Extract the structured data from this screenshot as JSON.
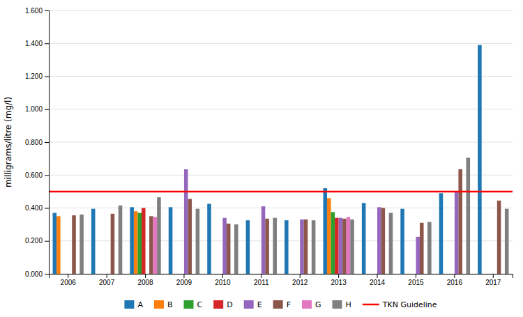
{
  "chart_data": {
    "type": "bar",
    "categories": [
      "2006",
      "2007",
      "2008",
      "2009",
      "2010",
      "2011",
      "2012",
      "2013",
      "2014",
      "2015",
      "2016",
      "2017"
    ],
    "series": [
      {
        "name": "A",
        "values": [
          0.37,
          0.395,
          0.405,
          0.405,
          0.425,
          0.325,
          0.325,
          0.52,
          0.43,
          0.395,
          0.49,
          1.39
        ]
      },
      {
        "name": "B",
        "values": [
          0.35,
          0.0,
          0.38,
          0.0,
          0.0,
          0.0,
          0.0,
          0.46,
          0.0,
          0.0,
          0.0,
          0.0
        ]
      },
      {
        "name": "C",
        "values": [
          0.0,
          0.0,
          0.37,
          0.0,
          0.0,
          0.0,
          0.0,
          0.375,
          0.0,
          0.0,
          0.0,
          0.0
        ]
      },
      {
        "name": "D",
        "values": [
          0.0,
          0.0,
          0.4,
          0.0,
          0.0,
          0.0,
          0.0,
          0.34,
          0.0,
          0.0,
          0.0,
          0.0
        ]
      },
      {
        "name": "E",
        "values": [
          0.0,
          0.0,
          0.0,
          0.635,
          0.34,
          0.41,
          0.33,
          0.34,
          0.405,
          0.225,
          0.495,
          0.0
        ]
      },
      {
        "name": "F",
        "values": [
          0.355,
          0.365,
          0.35,
          0.455,
          0.305,
          0.335,
          0.33,
          0.335,
          0.4,
          0.31,
          0.635,
          0.445
        ]
      },
      {
        "name": "G",
        "values": [
          0.0,
          0.0,
          0.345,
          0.0,
          0.0,
          0.0,
          0.0,
          0.345,
          0.0,
          0.0,
          0.0,
          0.0
        ]
      },
      {
        "name": "H",
        "values": [
          0.36,
          0.415,
          0.465,
          0.395,
          0.3,
          0.34,
          0.325,
          0.33,
          0.37,
          0.315,
          0.705,
          0.395
        ]
      }
    ],
    "guideline": {
      "name": "TKN Guideline",
      "value": 0.5,
      "color": "red"
    },
    "ylabel": "milligrams/litre (mg/l)",
    "ylim": [
      0.0,
      1.6
    ],
    "yticks": [
      {
        "value": 0.0,
        "label": "0.000"
      },
      {
        "value": 0.2,
        "label": "0.200"
      },
      {
        "value": 0.4,
        "label": "0.400"
      },
      {
        "value": 0.6,
        "label": "0.600"
      },
      {
        "value": 0.8,
        "label": "0.800"
      },
      {
        "value": 1.0,
        "label": "1.000"
      },
      {
        "value": 1.2,
        "label": "1.200"
      },
      {
        "value": 1.4,
        "label": "1.400"
      },
      {
        "value": 1.6,
        "label": "1.600"
      }
    ],
    "grid": true,
    "legend": "bottom"
  }
}
